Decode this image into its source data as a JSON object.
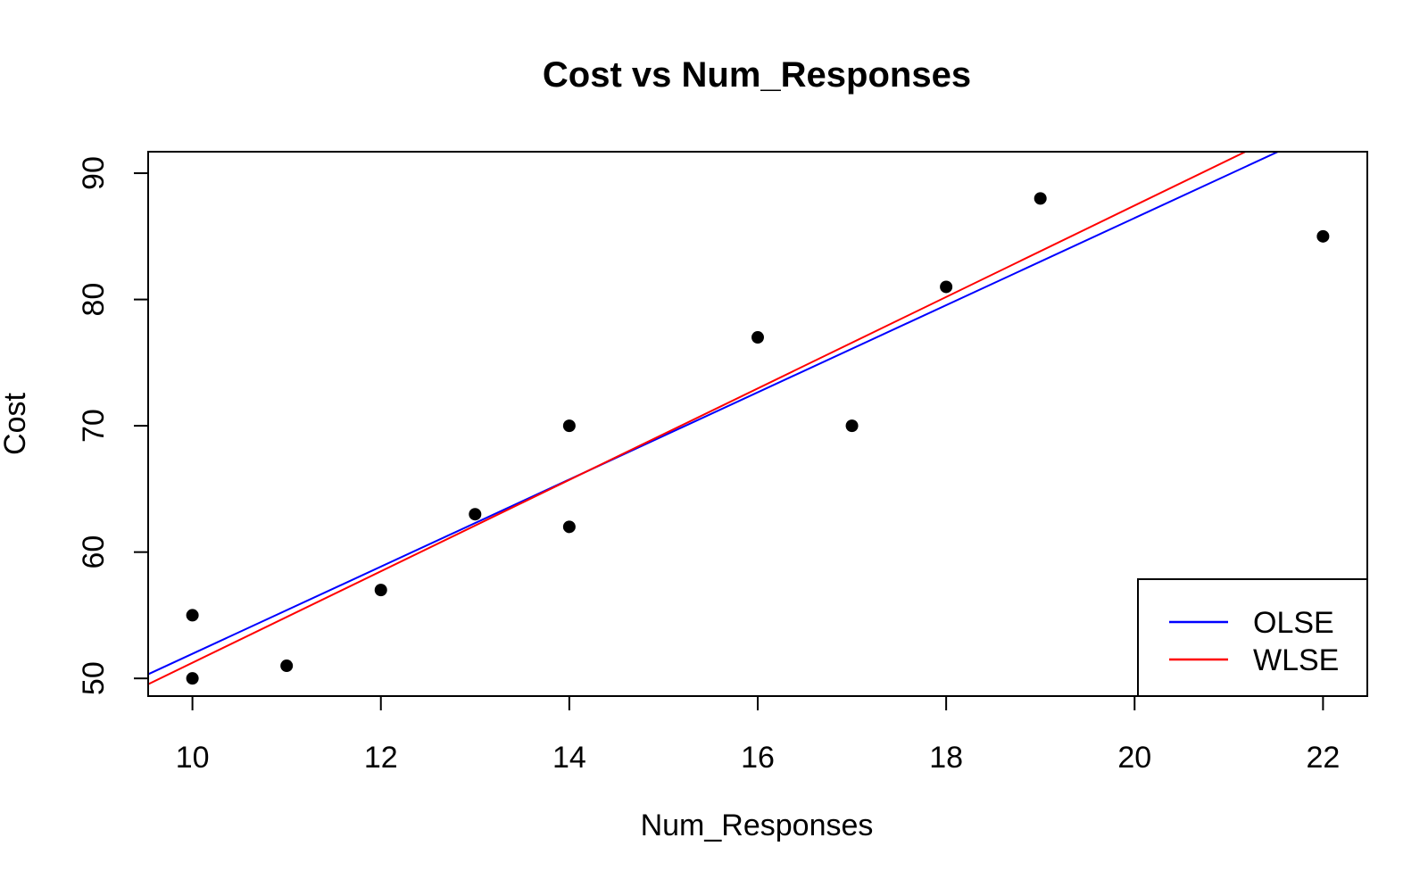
{
  "chart_data": {
    "type": "scatter",
    "title": "Cost vs Num_Responses",
    "xlabel": "Num_Responses",
    "ylabel": "Cost",
    "xlim": [
      9.53,
      22.47
    ],
    "ylim": [
      48.6,
      91.7
    ],
    "x_ticks": [
      10,
      12,
      14,
      16,
      18,
      20,
      22
    ],
    "y_ticks": [
      50,
      60,
      70,
      80,
      90
    ],
    "points": {
      "x": [
        10,
        10,
        11,
        12,
        13,
        14,
        14,
        16,
        17,
        18,
        19,
        22
      ],
      "y": [
        55,
        50,
        51,
        57,
        63,
        70,
        62,
        77,
        70,
        81,
        88,
        85
      ]
    },
    "series": [
      {
        "name": "OLSE",
        "color": "#0000ff",
        "intercept": 17.45,
        "slope": 3.45
      },
      {
        "name": "WLSE",
        "color": "#ff0000",
        "intercept": 15.04,
        "slope": 3.62
      }
    ],
    "legend": {
      "position": "bottom-right",
      "entries": [
        "OLSE",
        "WLSE"
      ]
    },
    "grid": false
  }
}
